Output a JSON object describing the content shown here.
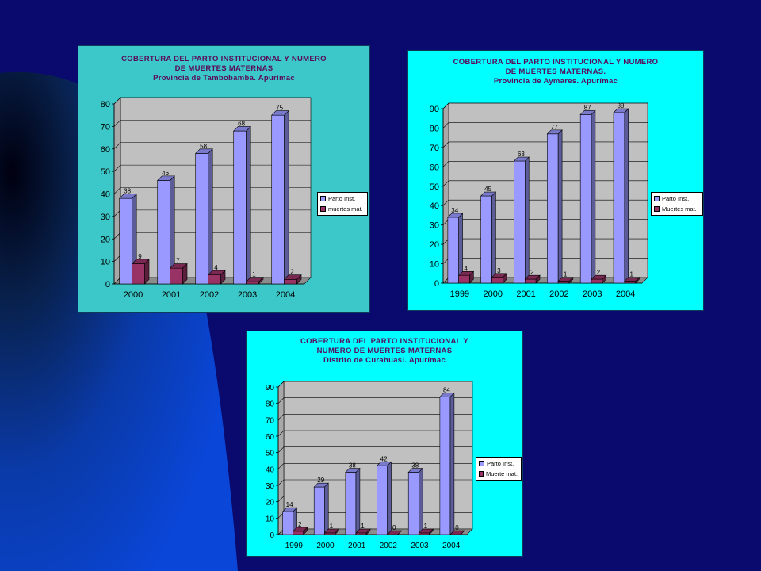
{
  "colors": {
    "background": "#0a0a6e",
    "parto_bar": "#9999ff",
    "muertes_bar": "#993366",
    "plot_wall": "#c0c0c0",
    "title_text": "#5a0a5a"
  },
  "chart_data": [
    {
      "type": "bar",
      "title": "COBERTURA DEL PARTO INSTITUCIONAL Y NUMERO",
      "title_line2": "DE MUERTES MATERNAS",
      "subtitle": "Provincia de Tambobamba. Apurímac",
      "categories": [
        "2000",
        "2001",
        "2002",
        "2003",
        "2004"
      ],
      "series": [
        {
          "name": "Parto Inst.",
          "values": [
            38,
            46,
            58,
            68,
            75
          ]
        },
        {
          "name": "muertes mat.",
          "values": [
            9,
            7,
            4,
            1,
            2
          ]
        }
      ],
      "ylim": [
        0,
        80
      ],
      "yticks": [
        0,
        10,
        20,
        30,
        40,
        50,
        60,
        70,
        80
      ],
      "background": "#3cc8c8",
      "legend": "right",
      "grid": true
    },
    {
      "type": "bar",
      "title": "COBERTURA DEL PARTO INSTITUCIONAL Y NUMERO",
      "title_line2": "DE MUERTES MATERNAS.",
      "subtitle": "Provincia de Aymares. Apurímac",
      "categories": [
        "1999",
        "2000",
        "2001",
        "2002",
        "2003",
        "2004"
      ],
      "series": [
        {
          "name": "Parto Inst.",
          "values": [
            34,
            45,
            63,
            77,
            87,
            88
          ]
        },
        {
          "name": "Muertes mat.",
          "values": [
            4,
            3,
            2,
            1,
            2,
            1
          ]
        }
      ],
      "ylim": [
        0,
        90
      ],
      "yticks": [
        0,
        10,
        20,
        30,
        40,
        50,
        60,
        70,
        80,
        90
      ],
      "background": "#00ffff",
      "legend": "right",
      "grid": true
    },
    {
      "type": "bar",
      "title": "COBERTURA DEL PARTO INSTITUCIONAL Y",
      "title_line2": "NUMERO DE MUERTES MATERNAS",
      "subtitle": "Distrito de Curahuasi. Apurímac",
      "categories": [
        "1999",
        "2000",
        "2001",
        "2002",
        "2003",
        "2004"
      ],
      "series": [
        {
          "name": "Parto Inst.",
          "values": [
            14,
            29,
            38,
            42,
            38,
            84
          ]
        },
        {
          "name": "Muerte mat.",
          "values": [
            2,
            1,
            1,
            0,
            1,
            0
          ]
        }
      ],
      "ylim": [
        0,
        90
      ],
      "yticks": [
        0,
        10,
        20,
        30,
        40,
        50,
        60,
        70,
        80,
        90
      ],
      "background": "#00ffff",
      "legend": "right",
      "grid": true
    }
  ]
}
